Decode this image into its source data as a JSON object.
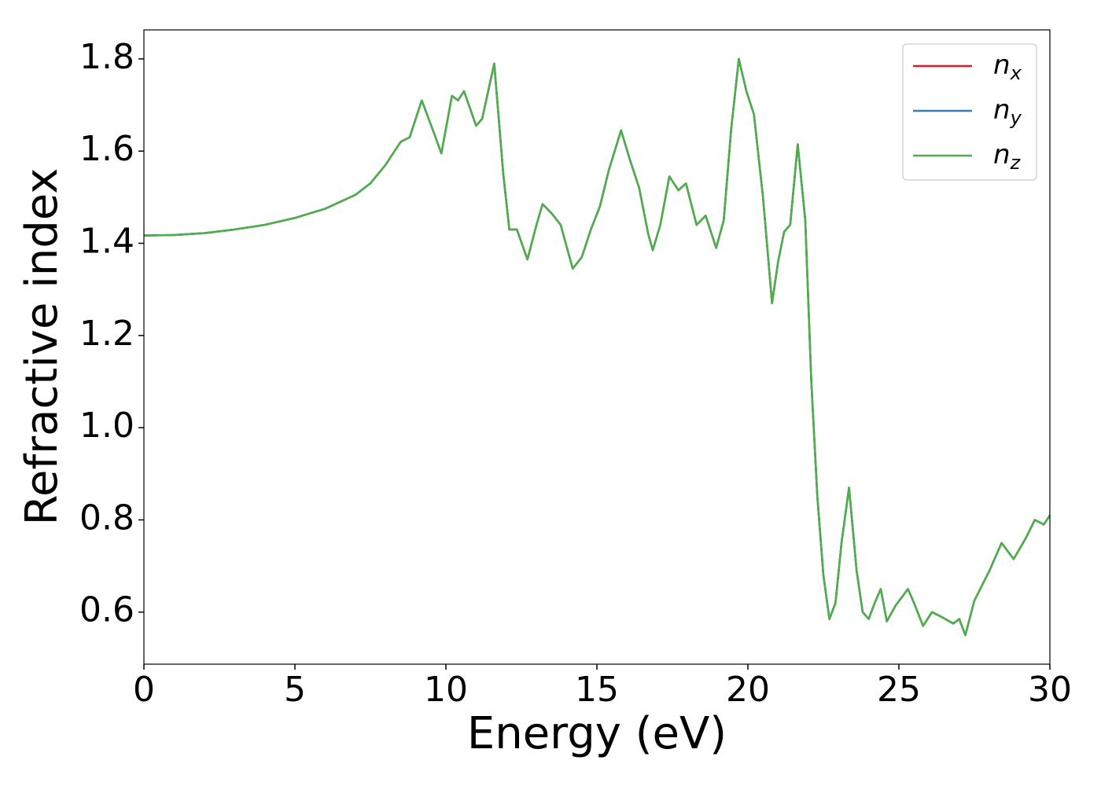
{
  "chart_data": {
    "type": "line",
    "xlabel": "Energy (eV)",
    "ylabel": "Refractive index",
    "xlim": [
      0,
      30
    ],
    "ylim": [
      0.487,
      1.863
    ],
    "xticks": [
      0,
      5,
      10,
      15,
      20,
      25,
      30
    ],
    "yticks": [
      0.6,
      0.8,
      {
        "value": 1,
        "label": "1.0"
      },
      1.2,
      1.4,
      1.6,
      1.8
    ],
    "legend": "upper right",
    "x": [
      0,
      1,
      2,
      3,
      4,
      5,
      6,
      7,
      7.5,
      8,
      8.5,
      8.8,
      9.2,
      9.6,
      9.85,
      10.2,
      10.4,
      10.6,
      11.0,
      11.2,
      11.6,
      11.9,
      12.1,
      12.35,
      12.7,
      13.0,
      13.2,
      13.5,
      13.8,
      14.2,
      14.5,
      14.8,
      15.1,
      15.4,
      15.8,
      16.1,
      16.4,
      16.7,
      16.85,
      17.1,
      17.4,
      17.7,
      17.95,
      18.3,
      18.6,
      18.95,
      19.2,
      19.45,
      19.7,
      19.95,
      20.2,
      20.5,
      20.8,
      21.0,
      21.2,
      21.4,
      21.65,
      21.9,
      22.1,
      22.3,
      22.5,
      22.7,
      22.9,
      23.1,
      23.35,
      23.6,
      23.8,
      24.0,
      24.2,
      24.4,
      24.6,
      24.9,
      25.3,
      25.5,
      25.8,
      26.1,
      26.4,
      26.8,
      27.0,
      27.2,
      27.5,
      28.0,
      28.4,
      28.8,
      29.2,
      29.5,
      29.8,
      30
    ],
    "series": [
      {
        "name": "nx",
        "color": "#e41a1c",
        "values": [
          1.417,
          1.418,
          1.422,
          1.43,
          1.44,
          1.455,
          1.475,
          1.505,
          1.53,
          1.57,
          1.62,
          1.63,
          1.71,
          1.64,
          1.595,
          1.72,
          1.71,
          1.73,
          1.655,
          1.67,
          1.79,
          1.55,
          1.43,
          1.43,
          1.365,
          1.44,
          1.485,
          1.465,
          1.44,
          1.345,
          1.37,
          1.43,
          1.48,
          1.56,
          1.645,
          1.58,
          1.52,
          1.42,
          1.385,
          1.44,
          1.545,
          1.515,
          1.53,
          1.44,
          1.46,
          1.39,
          1.45,
          1.65,
          1.8,
          1.73,
          1.68,
          1.5,
          1.27,
          1.36,
          1.425,
          1.44,
          1.615,
          1.45,
          1.1,
          0.85,
          0.68,
          0.585,
          0.62,
          0.75,
          0.87,
          0.69,
          0.6,
          0.585,
          0.62,
          0.65,
          0.58,
          0.615,
          0.65,
          0.62,
          0.57,
          0.6,
          0.59,
          0.575,
          0.585,
          0.55,
          0.625,
          0.69,
          0.75,
          0.715,
          0.76,
          0.8,
          0.79,
          0.81
        ]
      },
      {
        "name": "ny",
        "color": "#377eb8",
        "values": [
          1.417,
          1.418,
          1.422,
          1.43,
          1.44,
          1.455,
          1.475,
          1.505,
          1.53,
          1.57,
          1.62,
          1.63,
          1.71,
          1.64,
          1.595,
          1.72,
          1.71,
          1.73,
          1.655,
          1.67,
          1.79,
          1.55,
          1.43,
          1.43,
          1.365,
          1.44,
          1.485,
          1.465,
          1.44,
          1.345,
          1.37,
          1.43,
          1.48,
          1.56,
          1.645,
          1.58,
          1.52,
          1.42,
          1.385,
          1.44,
          1.545,
          1.515,
          1.53,
          1.44,
          1.46,
          1.39,
          1.45,
          1.65,
          1.8,
          1.73,
          1.68,
          1.5,
          1.27,
          1.36,
          1.425,
          1.44,
          1.615,
          1.45,
          1.1,
          0.85,
          0.68,
          0.585,
          0.62,
          0.75,
          0.87,
          0.69,
          0.6,
          0.585,
          0.62,
          0.65,
          0.58,
          0.615,
          0.65,
          0.62,
          0.57,
          0.6,
          0.59,
          0.575,
          0.585,
          0.55,
          0.625,
          0.69,
          0.75,
          0.715,
          0.76,
          0.8,
          0.79,
          0.81
        ]
      },
      {
        "name": "nz",
        "color": "#4daf4a",
        "values": [
          1.417,
          1.418,
          1.422,
          1.43,
          1.44,
          1.455,
          1.475,
          1.505,
          1.53,
          1.57,
          1.62,
          1.63,
          1.71,
          1.64,
          1.595,
          1.72,
          1.71,
          1.73,
          1.655,
          1.67,
          1.79,
          1.55,
          1.43,
          1.43,
          1.365,
          1.44,
          1.485,
          1.465,
          1.44,
          1.345,
          1.37,
          1.43,
          1.48,
          1.56,
          1.645,
          1.58,
          1.52,
          1.42,
          1.385,
          1.44,
          1.545,
          1.515,
          1.53,
          1.44,
          1.46,
          1.39,
          1.45,
          1.65,
          1.8,
          1.73,
          1.68,
          1.5,
          1.27,
          1.36,
          1.425,
          1.44,
          1.615,
          1.45,
          1.1,
          0.85,
          0.68,
          0.585,
          0.62,
          0.75,
          0.87,
          0.69,
          0.6,
          0.585,
          0.62,
          0.65,
          0.58,
          0.615,
          0.65,
          0.62,
          0.57,
          0.6,
          0.59,
          0.575,
          0.585,
          0.55,
          0.625,
          0.69,
          0.75,
          0.715,
          0.76,
          0.8,
          0.79,
          0.81
        ]
      }
    ]
  }
}
